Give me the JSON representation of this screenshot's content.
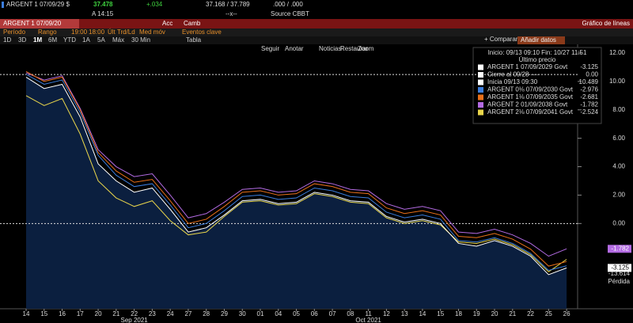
{
  "ui": {
    "header": {
      "ticker": "ARGENT 1 07/09/29 $",
      "price": "37.478",
      "change": "+.034",
      "range": "37.168 / 37.789",
      "yield": ".000 / .000",
      "time": "A 14:15",
      "flag": "--x--",
      "source": "Source CBBT"
    },
    "bar": {
      "security": "ARGENT 1 07/09/20",
      "acc": "Acc",
      "camb": "Camb",
      "title": "Gráfico de líneas"
    },
    "settings": [
      "Período",
      "Rango",
      "19:00",
      "18:00",
      "Últ Trd/Ld",
      "Med móv",
      "Eventos clave"
    ],
    "periods": [
      "1D",
      "3D",
      "1M",
      "6M",
      "YTD",
      "1A",
      "5A",
      "Máx",
      "30 Min",
      "Tabla"
    ],
    "tools": [
      "Seguir",
      "Anotar",
      "Noticias",
      "Zoom"
    ],
    "restore": "Restaurar",
    "compare": "+ Comparar",
    "add": "Añadir datos",
    "extra_labels": [
      "-13.614",
      "Pérdida"
    ]
  },
  "chart_data": {
    "type": "line",
    "categories": [
      "14",
      "15",
      "16",
      "17",
      "20",
      "21",
      "22",
      "23",
      "24",
      "27",
      "28",
      "29",
      "30",
      "01",
      "04",
      "05",
      "06",
      "07",
      "08",
      "11",
      "12",
      "13",
      "14",
      "15",
      "18",
      "19",
      "20",
      "21",
      "22",
      "25",
      "26"
    ],
    "month_labels": [
      "Sep 2021",
      "Oct 2021"
    ],
    "legend_header": "Inicio: 09/13 09:10 Fin: 10/27 11:51",
    "legend_title": "Último precio",
    "series": [
      {
        "name": "ARGENT 1 07/09/2029 Govt",
        "color": "#ffffff",
        "values": [
          10.3,
          9.5,
          9.8,
          7.5,
          4.2,
          3.0,
          2.2,
          2.5,
          1.0,
          -0.6,
          -0.3,
          0.6,
          1.6,
          1.7,
          1.4,
          1.5,
          2.2,
          2.0,
          1.6,
          1.5,
          0.5,
          0.1,
          0.3,
          0.0,
          -1.4,
          -1.6,
          -1.2,
          -1.6,
          -2.3,
          -3.6,
          -3.125
        ]
      },
      {
        "name": "ARGENT 0⅛ 07/09/2030 Govt",
        "color": "#3b7ddd",
        "values": [
          10.5,
          9.8,
          10.1,
          7.8,
          4.8,
          3.4,
          2.6,
          2.8,
          1.3,
          -0.3,
          0.0,
          0.9,
          1.9,
          2.0,
          1.7,
          1.8,
          2.5,
          2.3,
          1.9,
          1.8,
          0.8,
          0.4,
          0.6,
          0.3,
          -1.2,
          -1.3,
          -1.0,
          -1.4,
          -2.1,
          -3.3,
          -2.976
        ]
      },
      {
        "name": "ARGENT 1⅛ 07/09/2035 Govt",
        "color": "#e8701a",
        "values": [
          10.7,
          10.0,
          10.3,
          8.0,
          5.0,
          3.7,
          2.9,
          3.1,
          1.6,
          0.0,
          0.3,
          1.2,
          2.2,
          2.3,
          2.0,
          2.1,
          2.8,
          2.6,
          2.2,
          2.1,
          1.1,
          0.7,
          0.9,
          0.6,
          -0.9,
          -1.0,
          -0.7,
          -1.1,
          -1.8,
          -3.0,
          -2.681
        ]
      },
      {
        "name": "ARGENT 2 01/09/2038 Govt",
        "color": "#b36be3",
        "values": [
          10.6,
          10.1,
          10.4,
          8.1,
          5.2,
          4.0,
          3.3,
          3.5,
          2.0,
          0.4,
          0.7,
          1.5,
          2.4,
          2.5,
          2.2,
          2.3,
          3.0,
          2.8,
          2.4,
          2.3,
          1.4,
          1.0,
          1.2,
          0.9,
          -0.6,
          -0.7,
          -0.4,
          -0.8,
          -1.4,
          -2.3,
          -1.782
        ]
      },
      {
        "name": "ARGENT 2⅛ 07/09/2041 Govt",
        "color": "#ead64b",
        "values": [
          9.0,
          8.3,
          8.8,
          6.3,
          3.0,
          1.8,
          1.2,
          1.6,
          0.2,
          -0.8,
          -0.6,
          0.5,
          1.5,
          1.6,
          1.3,
          1.4,
          2.1,
          1.9,
          1.5,
          1.4,
          0.4,
          0.0,
          0.2,
          -0.1,
          -1.3,
          -1.4,
          -1.1,
          -1.5,
          -2.2,
          -3.4,
          -2.524
        ]
      }
    ],
    "reference_lines": [
      {
        "label": "Cierre al 09/28 ----",
        "value": 0,
        "value_label": "0.00"
      },
      {
        "label": "Inicia 09/13 09:30",
        "value": 10.489
      }
    ],
    "ylim": [
      -6,
      12.5
    ],
    "yticks": [
      {
        "value": 12,
        "label": "12.00"
      },
      {
        "value": 10,
        "label": "10.00"
      },
      {
        "value": 8,
        "label": "8.00"
      },
      {
        "value": 6,
        "label": "6.00"
      },
      {
        "value": 4,
        "label": "4.00"
      },
      {
        "value": 2,
        "label": "2.00"
      },
      {
        "value": 0,
        "label": "0.00"
      }
    ],
    "area_under_first": true
  }
}
